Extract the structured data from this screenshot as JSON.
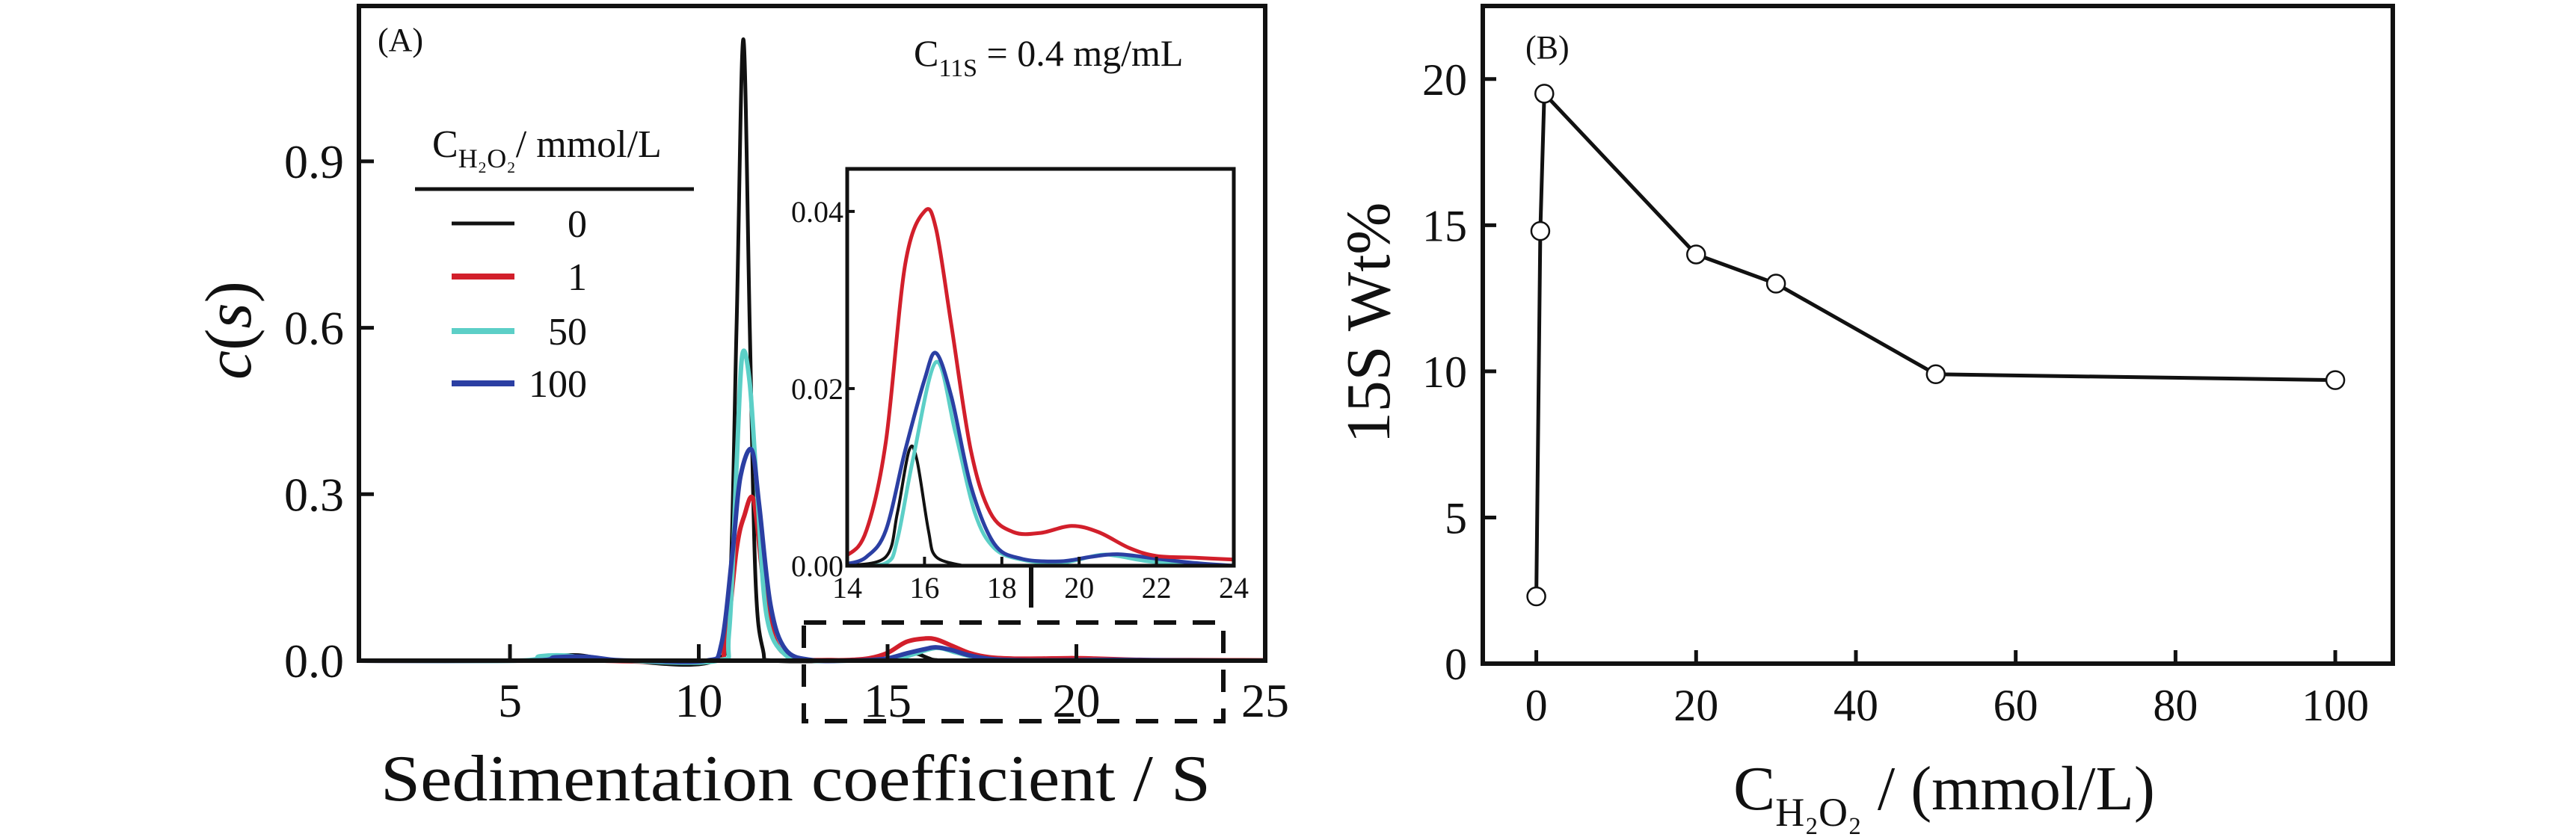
{
  "chart_data": [
    {
      "id": "A",
      "type": "line",
      "panel_label": "(A)",
      "title": "",
      "annotation": {
        "symbol": "C",
        "subscript": "11S",
        "text": " = 0.4 mg/mL"
      },
      "xlabel": "Sedimentation coefficient / S",
      "ylabel": {
        "prefix": "c",
        "paren": "(",
        "var": "s",
        "close": ")"
      },
      "xlim": [
        1,
        25
      ],
      "ylim": [
        0,
        1.18
      ],
      "xticks": [
        5,
        10,
        15,
        20,
        25
      ],
      "xtick_labels": [
        "5",
        "10",
        "15",
        "20",
        "25"
      ],
      "yticks": [
        0.0,
        0.3,
        0.6,
        0.9
      ],
      "ytick_labels": [
        "0.0",
        "0.3",
        "0.6",
        "0.9"
      ],
      "grid": false,
      "legend": {
        "placement": "upper-left",
        "title_symbol": "C",
        "title_subscript": "H₂O₂",
        "title_unit": "/ mmol/L"
      },
      "highlight_box": {
        "x": [
          12.8,
          24
        ],
        "style": "dashed",
        "arrow_to": "inset"
      },
      "series": [
        {
          "name": "0",
          "color": "#111111",
          "points": [
            [
              1,
              0
            ],
            [
              5.5,
              0
            ],
            [
              6.2,
              0.008
            ],
            [
              6.8,
              0.01
            ],
            [
              7.4,
              0.004
            ],
            [
              8,
              0
            ],
            [
              10.4,
              0
            ],
            [
              10.8,
              0.1
            ],
            [
              11.0,
              0.6
            ],
            [
              11.18,
              1.12
            ],
            [
              11.35,
              0.6
            ],
            [
              11.5,
              0.15
            ],
            [
              11.7,
              0.02
            ],
            [
              12,
              0
            ],
            [
              14,
              0
            ],
            [
              15,
              0.001
            ],
            [
              15.3,
              0.006
            ],
            [
              15.6,
              0.013
            ],
            [
              15.8,
              0.012
            ],
            [
              16.1,
              0.004
            ],
            [
              16.3,
              0.001
            ],
            [
              17,
              0
            ],
            [
              25,
              0
            ]
          ]
        },
        {
          "name": "1",
          "color": "#d21f2b",
          "points": [
            [
              1,
              0
            ],
            [
              5.5,
              0
            ],
            [
              6.5,
              0.006
            ],
            [
              7.5,
              0
            ],
            [
              10.3,
              0
            ],
            [
              10.7,
              0.03
            ],
            [
              11.0,
              0.2
            ],
            [
              11.2,
              0.26
            ],
            [
              11.45,
              0.29
            ],
            [
              11.7,
              0.15
            ],
            [
              12,
              0.04
            ],
            [
              12.5,
              0.005
            ],
            [
              13.5,
              0.001
            ],
            [
              14,
              0.0012
            ],
            [
              14.5,
              0.004
            ],
            [
              15,
              0.014
            ],
            [
              15.5,
              0.034
            ],
            [
              16.0,
              0.04
            ],
            [
              16.3,
              0.038
            ],
            [
              16.7,
              0.027
            ],
            [
              17.2,
              0.013
            ],
            [
              17.7,
              0.006
            ],
            [
              18.3,
              0.0038
            ],
            [
              19.0,
              0.0037
            ],
            [
              19.8,
              0.0045
            ],
            [
              20.5,
              0.0038
            ],
            [
              21.3,
              0.002
            ],
            [
              22,
              0.0011
            ],
            [
              23,
              0.0009
            ],
            [
              24,
              0.0007
            ],
            [
              25,
              0.0005
            ]
          ]
        },
        {
          "name": "50",
          "color": "#5ccfc7",
          "points": [
            [
              1,
              0
            ],
            [
              5.2,
              0
            ],
            [
              5.8,
              0.008
            ],
            [
              6.5,
              0.009
            ],
            [
              7.3,
              0.002
            ],
            [
              8,
              0
            ],
            [
              10.5,
              0
            ],
            [
              10.8,
              0.05
            ],
            [
              11.0,
              0.35
            ],
            [
              11.15,
              0.55
            ],
            [
              11.35,
              0.5
            ],
            [
              11.55,
              0.3
            ],
            [
              11.8,
              0.08
            ],
            [
              12.3,
              0.01
            ],
            [
              13,
              0
            ],
            [
              14,
              0
            ],
            [
              15,
              0.0003
            ],
            [
              15.3,
              0.003
            ],
            [
              15.7,
              0.012
            ],
            [
              16.3,
              0.023
            ],
            [
              16.8,
              0.015
            ],
            [
              17.3,
              0.006
            ],
            [
              17.8,
              0.002
            ],
            [
              18.5,
              0.0007
            ],
            [
              19.5,
              0.0003
            ],
            [
              20.5,
              0.0012
            ],
            [
              21,
              0.0011
            ],
            [
              22,
              0.0004
            ],
            [
              24,
              0
            ],
            [
              25,
              0
            ]
          ]
        },
        {
          "name": "100",
          "color": "#2b3fa3",
          "points": [
            [
              1,
              0
            ],
            [
              5.5,
              0
            ],
            [
              6.2,
              0.006
            ],
            [
              7,
              0.007
            ],
            [
              7.8,
              0.001
            ],
            [
              8.5,
              0
            ],
            [
              10.2,
              0
            ],
            [
              10.6,
              0.03
            ],
            [
              10.9,
              0.2
            ],
            [
              11.1,
              0.33
            ],
            [
              11.4,
              0.38
            ],
            [
              11.6,
              0.28
            ],
            [
              11.9,
              0.1
            ],
            [
              12.3,
              0.02
            ],
            [
              13,
              0.001
            ],
            [
              14,
              0.0002
            ],
            [
              14.5,
              0.001
            ],
            [
              15,
              0.004
            ],
            [
              15.5,
              0.013
            ],
            [
              16.0,
              0.021
            ],
            [
              16.3,
              0.024
            ],
            [
              16.7,
              0.019
            ],
            [
              17.2,
              0.009
            ],
            [
              17.8,
              0.0025
            ],
            [
              18.5,
              0.0008
            ],
            [
              19.5,
              0.0005
            ],
            [
              20.3,
              0.001
            ],
            [
              21,
              0.0013
            ],
            [
              22,
              0.0008
            ],
            [
              23,
              0.0003
            ],
            [
              24,
              0
            ],
            [
              25,
              0
            ]
          ]
        }
      ]
    },
    {
      "id": "A-inset",
      "type": "line",
      "title": "",
      "xlabel": "",
      "ylabel": "",
      "xlim": [
        14,
        24
      ],
      "ylim": [
        0,
        0.0448
      ],
      "xticks": [
        14,
        16,
        18,
        20,
        22,
        24
      ],
      "xtick_labels": [
        "14",
        "16",
        "18",
        "20",
        "22",
        "24"
      ],
      "yticks": [
        0.0,
        0.02,
        0.04
      ],
      "ytick_labels": [
        "0.00",
        "0.02",
        "0.04"
      ],
      "grid": false,
      "series_source": "A"
    },
    {
      "id": "B",
      "type": "line",
      "panel_label": "(B)",
      "title": "",
      "xlabel": {
        "symbol": "C",
        "subscript": "H₂O₂",
        "unit": " / (mmol/L)"
      },
      "ylabel": "15S Wt%",
      "xlim": [
        -6.7,
        107.2
      ],
      "ylim": [
        0,
        22.5
      ],
      "xticks": [
        0,
        20,
        40,
        60,
        80,
        100
      ],
      "xtick_labels": [
        "0",
        "20",
        "40",
        "60",
        "80",
        "100"
      ],
      "yticks": [
        0,
        5,
        10,
        15,
        20
      ],
      "ytick_labels": [
        "0",
        "5",
        "10",
        "15",
        "20"
      ],
      "grid": false,
      "marker": "open-circle",
      "x": [
        0,
        0.5,
        1,
        20,
        30,
        50,
        100
      ],
      "series": [
        {
          "name": "15S Wt%",
          "color": "#111111",
          "values": [
            2.3,
            14.8,
            19.5,
            14.0,
            13.0,
            9.9,
            9.7
          ]
        }
      ]
    }
  ]
}
